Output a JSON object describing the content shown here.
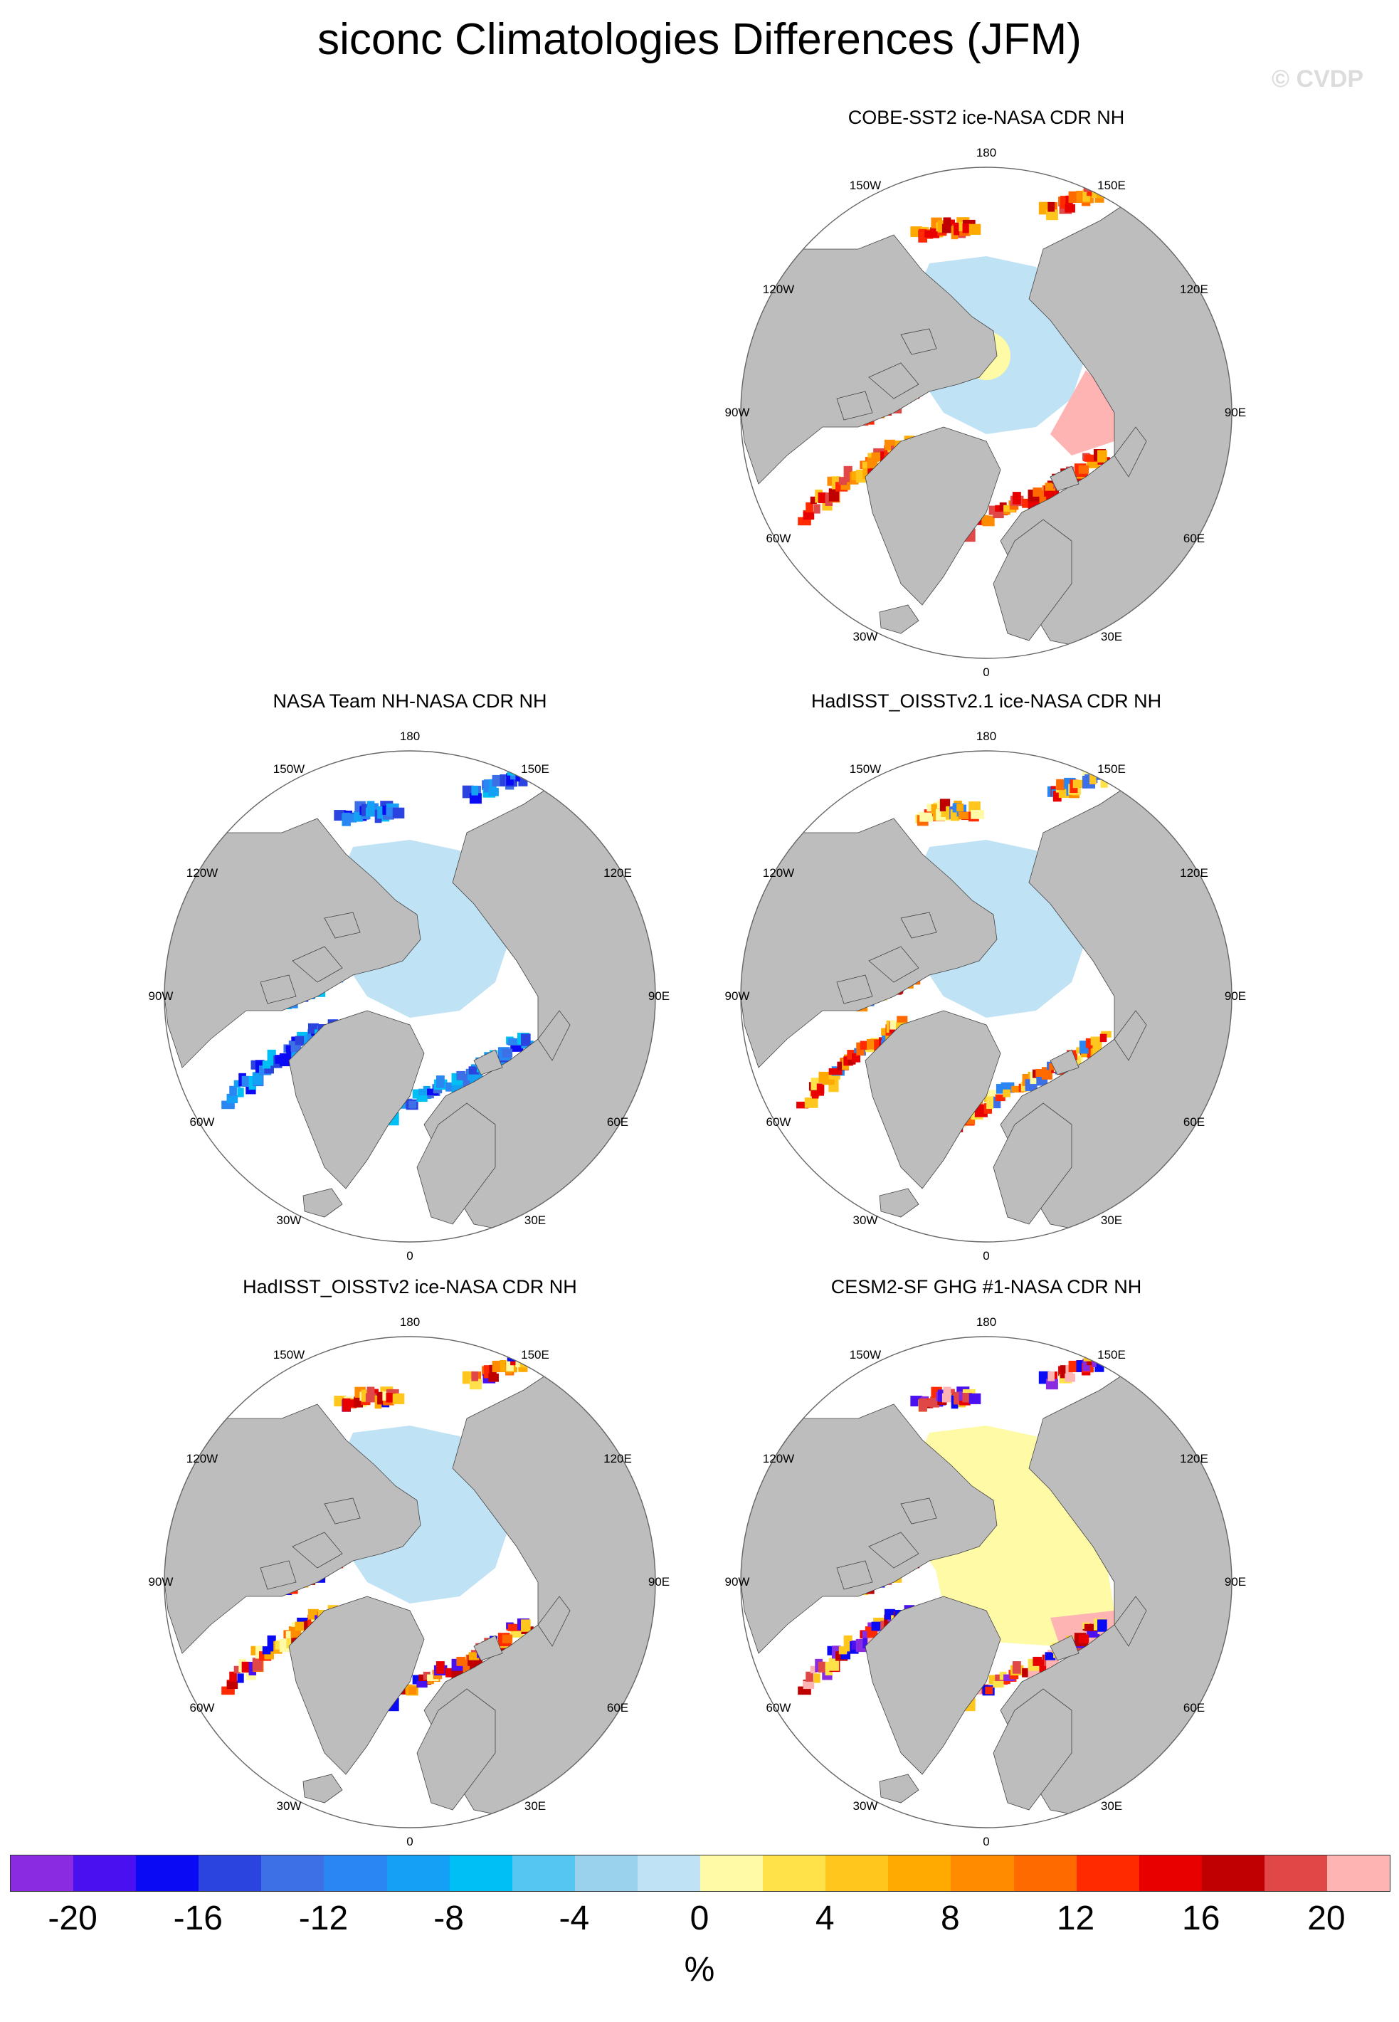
{
  "title": "siconc Climatologies Differences (JFM)",
  "watermark": "© CVDP",
  "lon_labels": {
    "top": "180",
    "bottom": "0",
    "upper_left": "150W",
    "upper_right": "150E",
    "left_upper": "120W",
    "right_upper": "120E",
    "left": "90W",
    "right": "90E",
    "left_lower": "60W",
    "right_lower": "60E",
    "lower_left": "30W",
    "lower_right": "30E"
  },
  "panels": [
    {
      "title": "COBE-SST2 ice-NASA CDR NH",
      "pattern": "cobe"
    },
    {
      "title": "NASA Team NH-NASA CDR NH",
      "pattern": "team"
    },
    {
      "title": "HadISST_OISSTv2.1 ice-NASA CDR NH",
      "pattern": "had21"
    },
    {
      "title": "HadISST_OISSTv2 ice-NASA CDR NH",
      "pattern": "had2"
    },
    {
      "title": "CESM2-SF GHG #1-NASA CDR NH",
      "pattern": "cesm"
    }
  ],
  "colorbar": {
    "colors": [
      "#8a2be2",
      "#4b10f0",
      "#0a0af5",
      "#2b44e0",
      "#3d6fe6",
      "#2a86f2",
      "#14a0f5",
      "#00bff5",
      "#55c5f2",
      "#9ad2ee",
      "#bfe2f4",
      "#fffaa6",
      "#ffe24a",
      "#ffc61e",
      "#ffaa00",
      "#ff8c00",
      "#ff6a00",
      "#ff2a00",
      "#e80000",
      "#c00000",
      "#e04848",
      "#ffb4b4"
    ],
    "tick_labels": [
      "-20",
      "-16",
      "-12",
      "-8",
      "-4",
      "0",
      "4",
      "8",
      "12",
      "16",
      "20"
    ],
    "unit": "%"
  },
  "map_colors": {
    "land": "#bdbdbd",
    "ocean": "#ffffff"
  }
}
